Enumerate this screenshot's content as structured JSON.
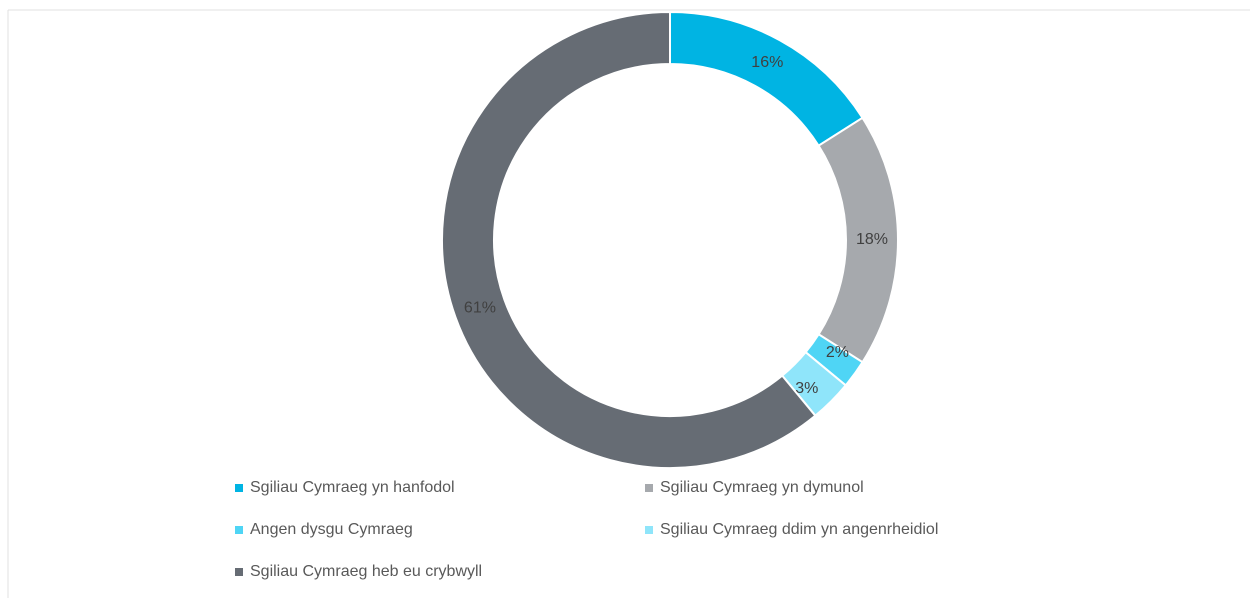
{
  "chart_data": {
    "type": "pie",
    "donut": true,
    "categories": [
      "Sgiliau Cymraeg yn hanfodol",
      "Sgiliau Cymraeg yn dymunol",
      "Angen dysgu Cymraeg",
      "Sgiliau Cymraeg ddim yn angenrheidiol",
      "Sgiliau Cymraeg heb eu crybwyll"
    ],
    "values": [
      16,
      18,
      2,
      3,
      61
    ],
    "value_labels": [
      "16%",
      "18%",
      "2%",
      "3%",
      "61%"
    ],
    "colors": [
      "#00b4e3",
      "#a6a9ad",
      "#4fd5f5",
      "#8fe5fa",
      "#666c74"
    ],
    "legend": "bottom"
  }
}
